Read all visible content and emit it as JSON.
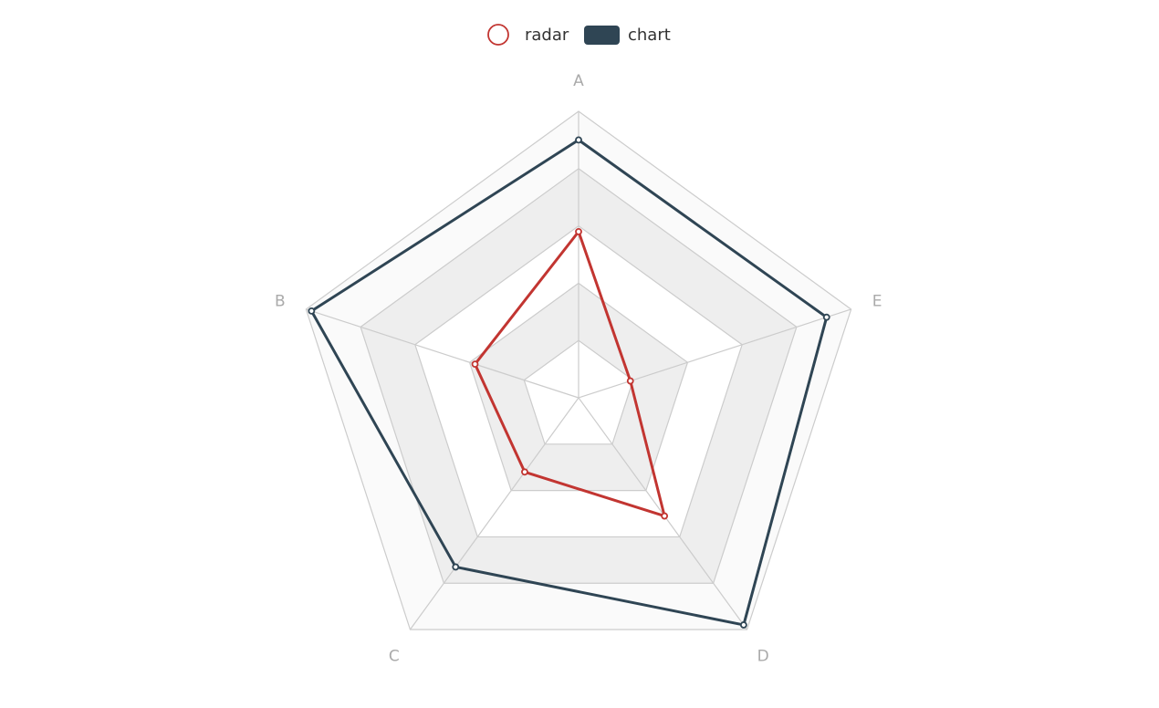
{
  "chart_data": {
    "type": "radar",
    "indicators": [
      {
        "name": "A",
        "max": 100
      },
      {
        "name": "B",
        "max": 100
      },
      {
        "name": "C",
        "max": 100
      },
      {
        "name": "D",
        "max": 100
      },
      {
        "name": "E",
        "max": 100
      }
    ],
    "split_number": 5,
    "series": [
      {
        "name": "radar",
        "values": [
          58,
          38,
          32,
          51,
          19
        ],
        "color": "#c23531"
      },
      {
        "name": "chart",
        "values": [
          90,
          98,
          73,
          98,
          91
        ],
        "color": "#2f4554"
      }
    ],
    "legend_position": "top-center"
  }
}
